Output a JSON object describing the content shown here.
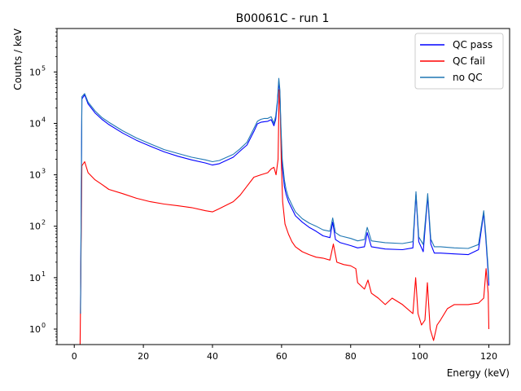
{
  "chart_data": {
    "type": "line",
    "title": "B00061C - run 1",
    "xlabel": "Energy (keV)",
    "ylabel": "Counts / keV",
    "xlim": [
      -5,
      126
    ],
    "ylim": [
      0.5,
      700000
    ],
    "y_scale": "log",
    "x_ticks": [
      0,
      20,
      40,
      60,
      80,
      100,
      120
    ],
    "y_ticks": [
      {
        "value": 1,
        "label_base": "10",
        "label_exp": "0"
      },
      {
        "value": 10,
        "label_base": "10",
        "label_exp": "1"
      },
      {
        "value": 100,
        "label_base": "10",
        "label_exp": "2"
      },
      {
        "value": 1000,
        "label_base": "10",
        "label_exp": "3"
      },
      {
        "value": 10000,
        "label_base": "10",
        "label_exp": "4"
      },
      {
        "value": 100000,
        "label_base": "10",
        "label_exp": "5"
      }
    ],
    "grid": false,
    "legend_position": "top-right",
    "series": [
      {
        "name": "QC pass",
        "color": "#0000ff",
        "x": [
          1.8,
          2.2,
          3,
          4,
          6,
          8,
          10,
          14,
          18,
          22,
          26,
          30,
          34,
          38,
          40,
          42,
          46,
          48,
          50,
          52,
          53,
          54,
          55,
          56,
          57,
          57.8,
          58.3,
          58.8,
          59.2,
          59.5,
          59.8,
          60.2,
          60.8,
          61.3,
          62,
          63,
          64,
          66,
          68,
          70,
          72,
          74,
          74.8,
          75.6,
          77,
          80,
          82,
          84,
          84.8,
          86,
          90,
          95,
          98,
          98.9,
          99.7,
          101,
          102.3,
          103.2,
          104.2,
          106,
          110,
          114,
          117,
          118.5,
          119.1,
          119.8,
          120
        ],
        "y": [
          2,
          30000,
          36000,
          24000,
          16000,
          12000,
          9500,
          6500,
          4700,
          3600,
          2800,
          2300,
          1950,
          1700,
          1550,
          1650,
          2200,
          2900,
          3800,
          7000,
          9800,
          10500,
          10800,
          11000,
          11800,
          9000,
          12000,
          25000,
          65000,
          40000,
          8000,
          1500,
          600,
          420,
          300,
          220,
          160,
          120,
          95,
          80,
          65,
          60,
          120,
          55,
          48,
          42,
          38,
          40,
          75,
          40,
          36,
          35,
          38,
          420,
          50,
          32,
          380,
          45,
          30,
          30,
          29,
          28,
          35,
          180,
          60,
          12,
          7
        ]
      },
      {
        "name": "QC fail",
        "color": "#ff0000",
        "x": [
          1.7,
          2.2,
          3,
          4,
          6,
          8,
          10,
          14,
          18,
          22,
          26,
          30,
          34,
          38,
          40,
          42,
          46,
          48,
          50,
          52,
          54,
          56,
          57,
          57.8,
          58.4,
          59,
          59.3,
          59.6,
          59.9,
          60.3,
          61,
          62,
          63,
          64,
          66,
          68,
          70,
          72,
          74,
          75,
          76,
          78,
          80,
          81.5,
          82,
          84,
          85,
          86,
          88,
          90,
          92,
          95,
          98,
          98.8,
          99.5,
          100.5,
          101.5,
          102.2,
          103,
          104,
          105,
          106,
          108,
          110,
          114,
          117,
          118.5,
          119.2,
          119.8,
          120
        ],
        "y": [
          0.5,
          1500,
          1800,
          1100,
          800,
          650,
          520,
          430,
          350,
          300,
          270,
          250,
          230,
          200,
          190,
          220,
          300,
          400,
          600,
          900,
          1000,
          1100,
          1300,
          1400,
          1000,
          2000,
          45000,
          20000,
          2000,
          300,
          110,
          70,
          50,
          40,
          32,
          28,
          25,
          24,
          22,
          45,
          20,
          18,
          17,
          15,
          8,
          6,
          9,
          5,
          4,
          3,
          4,
          3,
          2,
          10,
          2,
          1.2,
          1.5,
          8,
          1,
          0.6,
          1.2,
          1.5,
          2.5,
          3,
          3,
          3.2,
          4,
          15,
          5,
          1
        ]
      },
      {
        "name": "no QC",
        "color": "#1f77b4",
        "x": [
          1.8,
          2.2,
          3,
          4,
          6,
          8,
          10,
          14,
          18,
          22,
          26,
          30,
          34,
          38,
          40,
          42,
          46,
          48,
          50,
          52,
          53,
          54,
          55,
          56,
          57,
          57.8,
          58.3,
          58.8,
          59.2,
          59.5,
          59.8,
          60.2,
          60.8,
          61.3,
          62,
          63,
          64,
          66,
          68,
          70,
          72,
          74,
          74.8,
          75.6,
          77,
          80,
          82,
          84,
          84.8,
          86,
          90,
          95,
          98,
          98.9,
          99.7,
          101,
          102.3,
          103.2,
          104.2,
          106,
          110,
          114,
          117,
          118.5,
          119.1,
          119.8,
          120
        ],
        "y": [
          2,
          33000,
          38000,
          26000,
          17500,
          13000,
          10500,
          7200,
          5200,
          4000,
          3100,
          2600,
          2200,
          1950,
          1800,
          1900,
          2500,
          3200,
          4300,
          8000,
          11000,
          12000,
          12500,
          12500,
          13500,
          10000,
          14000,
          28000,
          75000,
          45000,
          10000,
          2000,
          800,
          520,
          360,
          260,
          190,
          140,
          115,
          100,
          85,
          80,
          145,
          75,
          65,
          58,
          52,
          55,
          95,
          52,
          48,
          46,
          50,
          470,
          62,
          44,
          430,
          56,
          40,
          40,
          38,
          37,
          44,
          200,
          72,
          15,
          9
        ]
      }
    ]
  }
}
